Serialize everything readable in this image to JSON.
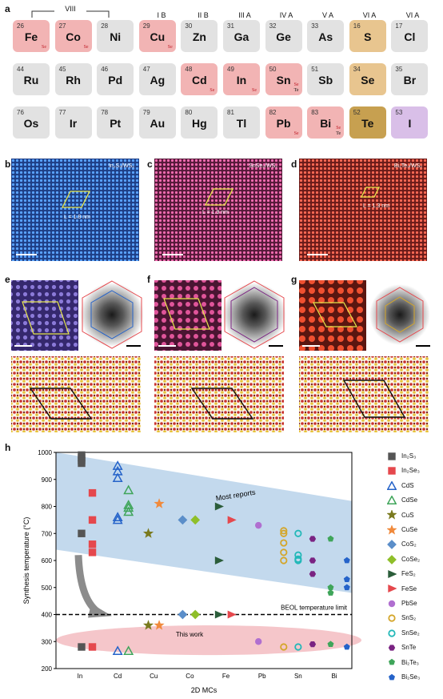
{
  "panels": {
    "a": "a",
    "b": "b",
    "c": "c",
    "d": "d",
    "e": "e",
    "f": "f",
    "g": "g",
    "h": "h"
  },
  "periodic": {
    "group_headers": [
      "VIII",
      "I B",
      "II B",
      "III A",
      "IV A",
      "V A",
      "VI A",
      "VI A"
    ],
    "rows": [
      [
        {
          "n": "26",
          "s": "Fe",
          "c": "pink",
          "tags": [
            "Se"
          ]
        },
        {
          "n": "27",
          "s": "Co",
          "c": "pink",
          "tags": [
            "Se"
          ]
        },
        {
          "n": "28",
          "s": "Ni",
          "c": "gray",
          "tags": []
        },
        {
          "n": "29",
          "s": "Cu",
          "c": "pink",
          "tags": [
            "Se"
          ]
        },
        {
          "n": "30",
          "s": "Zn",
          "c": "gray",
          "tags": []
        },
        {
          "n": "31",
          "s": "Ga",
          "c": "gray",
          "tags": []
        },
        {
          "n": "32",
          "s": "Ge",
          "c": "gray",
          "tags": []
        },
        {
          "n": "33",
          "s": "As",
          "c": "gray",
          "tags": []
        },
        {
          "n": "16",
          "s": "S",
          "c": "gold",
          "tags": []
        },
        {
          "n": "17",
          "s": "Cl",
          "c": "gray",
          "tags": []
        }
      ],
      [
        {
          "n": "44",
          "s": "Ru",
          "c": "gray",
          "tags": []
        },
        {
          "n": "45",
          "s": "Rh",
          "c": "gray",
          "tags": []
        },
        {
          "n": "46",
          "s": "Pd",
          "c": "gray",
          "tags": []
        },
        {
          "n": "47",
          "s": "Ag",
          "c": "gray",
          "tags": []
        },
        {
          "n": "48",
          "s": "Cd",
          "c": "pink",
          "tags": [
            "Se"
          ]
        },
        {
          "n": "49",
          "s": "In",
          "c": "pink",
          "tags": [
            "Se"
          ]
        },
        {
          "n": "50",
          "s": "Sn",
          "c": "pink",
          "tags": [
            "Se",
            "Te"
          ]
        },
        {
          "n": "51",
          "s": "Sb",
          "c": "gray",
          "tags": []
        },
        {
          "n": "34",
          "s": "Se",
          "c": "gold",
          "tags": []
        },
        {
          "n": "35",
          "s": "Br",
          "c": "gray",
          "tags": []
        }
      ],
      [
        {
          "n": "76",
          "s": "Os",
          "c": "gray",
          "tags": []
        },
        {
          "n": "77",
          "s": "Ir",
          "c": "gray",
          "tags": []
        },
        {
          "n": "78",
          "s": "Pt",
          "c": "gray",
          "tags": []
        },
        {
          "n": "79",
          "s": "Au",
          "c": "gray",
          "tags": []
        },
        {
          "n": "80",
          "s": "Hg",
          "c": "gray",
          "tags": []
        },
        {
          "n": "81",
          "s": "Tl",
          "c": "gray",
          "tags": []
        },
        {
          "n": "82",
          "s": "Pb",
          "c": "pink",
          "tags": [
            "Se"
          ]
        },
        {
          "n": "83",
          "s": "Bi",
          "c": "pink",
          "tags": [
            "Se",
            "Te"
          ]
        },
        {
          "n": "52",
          "s": "Te",
          "c": "goldd",
          "tags": []
        },
        {
          "n": "53",
          "s": "I",
          "c": "purple",
          "tags": []
        }
      ]
    ]
  },
  "stem": {
    "b_label": "In₂S₃/WS₂",
    "b_L": "L = 1.8 nm",
    "c_label": "SnSe₂/WS₂",
    "c_L": "L = 1.9 nm",
    "d_label": "Bi₂Te₃/WS₂",
    "d_L": "L = 1.3 nm"
  },
  "chart_data": {
    "type": "scatter",
    "xlabel": "2D MCs",
    "ylabel": "Synthesis temperature (°C)",
    "ylim": [
      200,
      1000
    ],
    "yticks": [
      200,
      300,
      400,
      500,
      600,
      700,
      800,
      900,
      1000
    ],
    "categories": [
      "In",
      "Cd",
      "Cu",
      "Co",
      "Fe",
      "Pb",
      "Sn",
      "Bi"
    ],
    "annotations": {
      "most": "Most reports",
      "beol": "BEOL temperature limit",
      "this": "This work"
    },
    "beol_temperature": 400,
    "series": [
      {
        "name": "In₂S₃",
        "color": "#555555",
        "marker": "square",
        "points": [
          [
            0,
            990
          ],
          [
            0,
            980
          ],
          [
            0,
            970
          ],
          [
            0,
            960
          ],
          [
            0,
            700
          ],
          [
            0,
            280
          ]
        ]
      },
      {
        "name": "In₂Se₃",
        "color": "#e5484d",
        "marker": "square",
        "points": [
          [
            0.3,
            850
          ],
          [
            0.3,
            750
          ],
          [
            0.3,
            660
          ],
          [
            0.3,
            630
          ],
          [
            0.3,
            280
          ]
        ]
      },
      {
        "name": "CdS",
        "color": "#2563c9",
        "marker": "triangle",
        "points": [
          [
            1,
            950
          ],
          [
            1,
            930
          ],
          [
            1,
            905
          ],
          [
            1,
            760
          ],
          [
            1,
            750
          ],
          [
            1,
            265
          ]
        ]
      },
      {
        "name": "CdSe",
        "color": "#3fa55a",
        "marker": "triangle",
        "points": [
          [
            1.3,
            860
          ],
          [
            1.3,
            805
          ],
          [
            1.3,
            795
          ],
          [
            1.3,
            780
          ],
          [
            1.3,
            265
          ]
        ]
      },
      {
        "name": "CuS",
        "color": "#7a7a1f",
        "marker": "star",
        "points": [
          [
            1.85,
            700
          ],
          [
            1.85,
            360
          ]
        ]
      },
      {
        "name": "CuSe",
        "color": "#f08a3c",
        "marker": "star",
        "points": [
          [
            2.15,
            810
          ],
          [
            2.15,
            360
          ]
        ]
      },
      {
        "name": "CoS₂",
        "color": "#5b8ec9",
        "marker": "diamond",
        "points": [
          [
            2.8,
            750
          ],
          [
            2.8,
            400
          ]
        ]
      },
      {
        "name": "CoSe₂",
        "color": "#8fbf2a",
        "marker": "diamond",
        "points": [
          [
            3.15,
            750
          ],
          [
            3.15,
            400
          ]
        ]
      },
      {
        "name": "FeS₂",
        "color": "#2b5d3a",
        "marker": "flag",
        "points": [
          [
            3.8,
            800
          ],
          [
            3.8,
            600
          ],
          [
            3.8,
            400
          ]
        ]
      },
      {
        "name": "FeSe",
        "color": "#e5484d",
        "marker": "flag",
        "points": [
          [
            4.15,
            750
          ],
          [
            4.15,
            400
          ]
        ]
      },
      {
        "name": "PbSe",
        "color": "#b06fd0",
        "marker": "circle",
        "points": [
          [
            4.9,
            730
          ],
          [
            4.9,
            300
          ]
        ]
      },
      {
        "name": "SnS₂",
        "color": "#d4a62a",
        "marker": "ring",
        "points": [
          [
            5.6,
            710
          ],
          [
            5.6,
            700
          ],
          [
            5.6,
            665
          ],
          [
            5.6,
            630
          ],
          [
            5.6,
            600
          ],
          [
            5.6,
            280
          ]
        ]
      },
      {
        "name": "SnSe₂",
        "color": "#22b8b8",
        "marker": "ring",
        "points": [
          [
            6.0,
            700
          ],
          [
            6.0,
            620
          ],
          [
            6.0,
            605
          ],
          [
            6.0,
            600
          ],
          [
            6.0,
            280
          ]
        ]
      },
      {
        "name": "SnTe",
        "color": "#7a2382",
        "marker": "hex",
        "points": [
          [
            6.4,
            680
          ],
          [
            6.4,
            600
          ],
          [
            6.4,
            550
          ],
          [
            6.4,
            290
          ]
        ]
      },
      {
        "name": "Bi₂Te₃",
        "color": "#3fa55a",
        "marker": "pent",
        "points": [
          [
            6.9,
            680
          ],
          [
            6.9,
            500
          ],
          [
            6.9,
            480
          ],
          [
            6.9,
            290
          ]
        ]
      },
      {
        "name": "Bi₂Se₃",
        "color": "#2563c9",
        "marker": "pent",
        "points": [
          [
            7.35,
            600
          ],
          [
            7.35,
            530
          ],
          [
            7.35,
            500
          ],
          [
            7.35,
            280
          ]
        ]
      }
    ]
  }
}
